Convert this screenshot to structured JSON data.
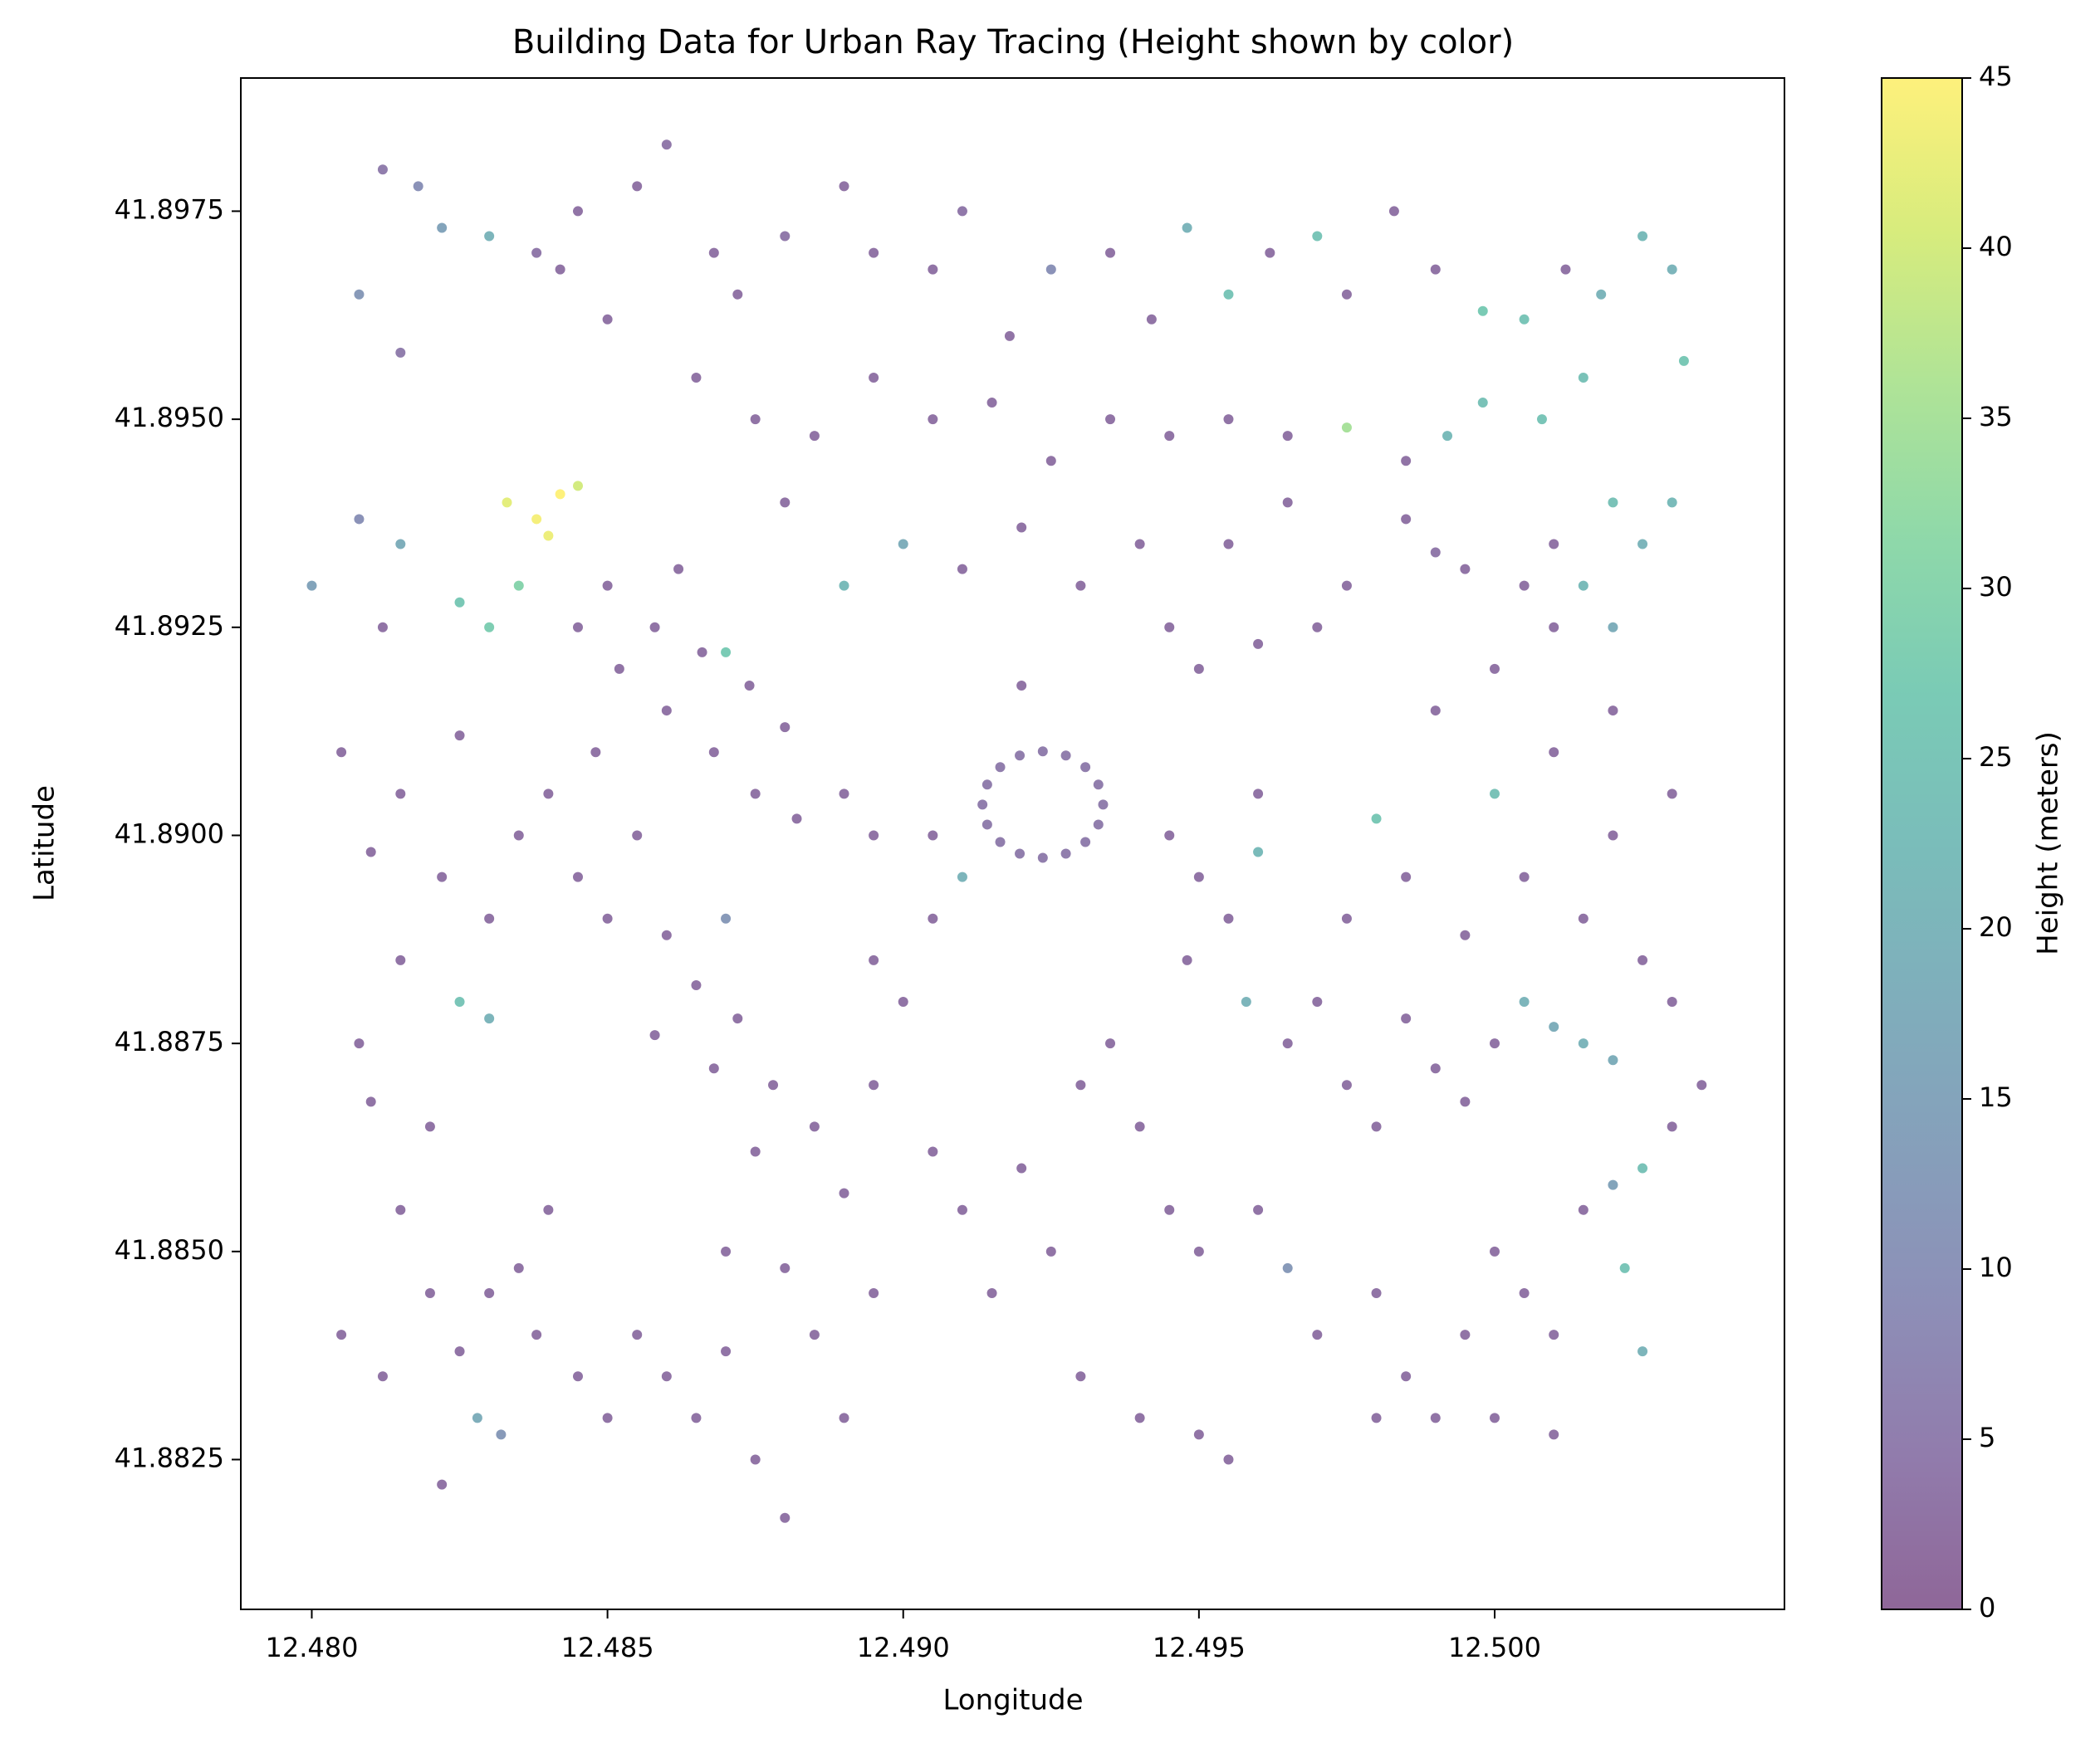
{
  "chart_data": {
    "type": "scatter",
    "title": "Building Data for Urban Ray Tracing (Height shown by color)",
    "x_label": "Longitude",
    "y_label": "Latitude",
    "colorbar_label": "Height (meters)",
    "colormap": "viridis",
    "alpha": 0.6,
    "xlim": [
      12.4788,
      12.5049
    ],
    "ylim": [
      41.8807,
      41.8991
    ],
    "clim": [
      0,
      45
    ],
    "xticks": [
      {
        "value": 12.48,
        "label": "12.480"
      },
      {
        "value": 12.485,
        "label": "12.485"
      },
      {
        "value": 12.49,
        "label": "12.490"
      },
      {
        "value": 12.495,
        "label": "12.495"
      },
      {
        "value": 12.5,
        "label": "12.500"
      }
    ],
    "yticks": [
      {
        "value": 41.8825,
        "label": "41.8825"
      },
      {
        "value": 41.885,
        "label": "41.8850"
      },
      {
        "value": 41.8875,
        "label": "41.8875"
      },
      {
        "value": 41.89,
        "label": "41.8900"
      },
      {
        "value": 41.8925,
        "label": "41.8925"
      },
      {
        "value": 41.895,
        "label": "41.8950"
      },
      {
        "value": 41.8975,
        "label": "41.8975"
      }
    ],
    "cticks": [
      0,
      5,
      10,
      15,
      20,
      25,
      30,
      35,
      40,
      45
    ],
    "x": [
      12.4812,
      12.4818,
      12.4822,
      12.4808,
      12.4815,
      12.483,
      12.4838,
      12.4842,
      12.4845,
      12.485,
      12.4855,
      12.486,
      12.4868,
      12.4872,
      12.488,
      12.489,
      12.4895,
      12.4905,
      12.491,
      12.4918,
      12.4925,
      12.4935,
      12.4942,
      12.4948,
      12.4955,
      12.4962,
      12.497,
      12.4975,
      12.4983,
      12.499,
      12.4998,
      12.5005,
      12.5012,
      12.5018,
      12.5025,
      12.503,
      12.5032,
      12.5015,
      12.5008,
      12.4998,
      12.4865,
      12.4875,
      12.4885,
      12.4895,
      12.4905,
      12.4915,
      12.4925,
      12.4935,
      12.4945,
      12.4955,
      12.4965,
      12.4975,
      12.4985,
      12.4992,
      12.488,
      12.489,
      12.49,
      12.491,
      12.492,
      12.493,
      12.494,
      12.4945,
      12.4955,
      12.4965,
      12.4975,
      12.4985,
      12.499,
      12.495,
      12.496,
      12.492,
      12.4833,
      12.4838,
      12.4842,
      12.484,
      12.4845,
      12.48,
      12.4808,
      12.4815,
      12.4825,
      12.483,
      12.4835,
      12.4812,
      12.4805,
      12.4815,
      12.4825,
      12.481,
      12.4822,
      12.483,
      12.4835,
      12.4815,
      12.4825,
      12.483,
      12.4808,
      12.481,
      12.482,
      12.4845,
      12.4852,
      12.486,
      12.4868,
      12.4875,
      12.4882,
      12.485,
      12.4858,
      12.4866,
      12.4874,
      12.488,
      12.489,
      12.4895,
      12.4862,
      12.487,
      12.4848,
      12.484,
      12.4855,
      12.485,
      12.486,
      12.4865,
      12.4872,
      12.4878,
      12.4885,
      12.4858,
      12.4868,
      12.4875,
      12.4845,
      12.487,
      12.4895,
      12.49,
      12.4905,
      12.4895,
      12.49338,
      12.4933,
      12.49308,
      12.49275,
      12.49236,
      12.49197,
      12.49164,
      12.49142,
      12.49134,
      12.49142,
      12.49164,
      12.49197,
      12.49236,
      12.49275,
      12.49308,
      12.4933,
      12.4905,
      12.491,
      12.493,
      12.4935,
      12.494,
      12.492,
      12.491,
      12.4905,
      12.4925,
      12.4945,
      12.495,
      12.4915,
      12.493,
      12.494,
      12.489,
      12.4895,
      12.4885,
      12.489,
      12.488,
      12.4875,
      12.487,
      12.488,
      12.4805,
      12.4812,
      12.482,
      12.4825,
      12.483,
      12.4828,
      12.4832,
      12.4838,
      12.4845,
      12.485,
      12.4855,
      12.486,
      12.4865,
      12.487,
      12.4822,
      12.4815,
      12.484,
      12.4835,
      12.4945,
      12.495,
      12.4955,
      12.496,
      12.4948,
      12.4958,
      12.4965,
      12.497,
      12.4975,
      12.498,
      12.4985,
      12.499,
      12.4995,
      12.5,
      12.5005,
      12.501,
      12.5015,
      12.502,
      12.4975,
      12.4985,
      12.4995,
      12.5005,
      12.5015,
      12.5025,
      12.503,
      12.502,
      12.498,
      12.5,
      12.499,
      12.5,
      12.501,
      12.502,
      12.503,
      12.501,
      12.5015,
      12.502,
      12.5025,
      12.503,
      12.502,
      12.501,
      12.5005,
      12.4995,
      12.497,
      12.496,
      12.496,
      12.4965,
      12.497,
      12.498,
      12.4985,
      12.499,
      12.4995,
      12.5,
      12.5005,
      12.501,
      12.5015,
      12.502,
      12.5025,
      12.5022,
      12.5025,
      12.5,
      12.498,
      12.495,
      12.4955,
      12.501,
      12.503,
      12.5035
    ],
    "y": [
      41.898,
      41.8978,
      41.8973,
      41.8965,
      41.8958,
      41.8972,
      41.897,
      41.8968,
      41.8975,
      41.8962,
      41.8978,
      41.8983,
      41.897,
      41.8965,
      41.8972,
      41.8978,
      41.897,
      41.8968,
      41.8975,
      41.896,
      41.8968,
      41.897,
      41.8962,
      41.8973,
      41.8965,
      41.897,
      41.8972,
      41.8965,
      41.8975,
      41.8968,
      41.8963,
      41.8962,
      41.8968,
      41.8965,
      41.8972,
      41.8968,
      41.8957,
      41.8955,
      41.895,
      41.8952,
      41.8955,
      41.895,
      41.8948,
      41.8955,
      41.895,
      41.8952,
      41.8945,
      41.895,
      41.8948,
      41.895,
      41.8948,
      41.8949,
      41.8945,
      41.8948,
      41.894,
      41.893,
      41.8935,
      41.8932,
      41.8937,
      41.893,
      41.8935,
      41.8925,
      41.8935,
      41.894,
      41.893,
      41.8938,
      41.8934,
      41.892,
      41.8923,
      41.8918,
      41.894,
      41.8938,
      41.8941,
      41.8936,
      41.8942,
      41.893,
      41.8938,
      41.8935,
      41.8928,
      41.8925,
      41.893,
      41.8925,
      41.891,
      41.8905,
      41.8912,
      41.8898,
      41.8895,
      41.889,
      41.89,
      41.8885,
      41.888,
      41.8878,
      41.8875,
      41.8868,
      41.8865,
      41.8925,
      41.892,
      41.8915,
      41.891,
      41.8905,
      41.8902,
      41.893,
      41.8925,
      41.8922,
      41.8918,
      41.8913,
      41.8905,
      41.89,
      41.8932,
      41.8922,
      41.891,
      41.8905,
      41.89,
      41.889,
      41.8888,
      41.8882,
      41.8878,
      41.887,
      41.8865,
      41.8876,
      41.8872,
      41.8862,
      41.8895,
      41.889,
      41.8885,
      41.888,
      41.889,
      41.887,
      41.89037,
      41.89061,
      41.89082,
      41.89096,
      41.89101,
      41.89096,
      41.89082,
      41.89061,
      41.89037,
      41.89013,
      41.88992,
      41.88978,
      41.88973,
      41.88978,
      41.88992,
      41.89013,
      41.89,
      41.8895,
      41.887,
      41.8875,
      41.8865,
      41.886,
      41.8855,
      41.8862,
      41.885,
      41.8855,
      41.885,
      41.8845,
      41.8835,
      41.883,
      41.8857,
      41.8845,
      41.884,
      41.883,
      41.8818,
      41.8825,
      41.885,
      41.8848,
      41.884,
      41.8835,
      41.8845,
      41.8838,
      41.8845,
      41.883,
      41.8828,
      41.884,
      41.8835,
      41.883,
      41.884,
      41.8835,
      41.883,
      41.8838,
      41.8822,
      41.8855,
      41.8855,
      41.8848,
      41.89,
      41.8895,
      41.889,
      41.8898,
      41.8885,
      41.888,
      41.8875,
      41.888,
      41.887,
      41.8865,
      41.8878,
      41.8872,
      41.8868,
      41.8875,
      41.888,
      41.8877,
      41.8875,
      41.8873,
      41.889,
      41.8895,
      41.8888,
      41.8895,
      41.889,
      41.8885,
      41.888,
      41.89,
      41.8902,
      41.8905,
      41.8915,
      41.892,
      41.891,
      41.8915,
      41.8905,
      41.8925,
      41.893,
      41.8925,
      41.8935,
      41.894,
      41.894,
      41.8935,
      41.893,
      41.8932,
      41.8925,
      41.8905,
      41.8855,
      41.8848,
      41.884,
      41.8845,
      41.8835,
      41.883,
      41.884,
      41.885,
      41.8845,
      41.884,
      41.8855,
      41.8858,
      41.886,
      41.8848,
      41.8838,
      41.883,
      41.883,
      41.8828,
      41.8825,
      41.8828,
      41.8865,
      41.887
    ],
    "c": [
      5,
      10,
      15,
      12,
      5,
      20,
      4,
      3,
      3,
      3,
      3,
      4,
      3,
      3,
      4,
      3,
      3,
      3,
      4,
      3,
      10,
      3,
      3,
      20,
      25,
      3,
      25,
      3,
      3,
      3,
      27,
      25,
      3,
      20,
      22,
      20,
      26,
      24,
      25,
      24,
      3,
      3,
      3,
      3,
      3,
      3,
      3,
      3,
      3,
      3,
      3,
      35,
      3,
      22,
      3,
      22,
      18,
      3,
      3,
      3,
      3,
      3,
      3,
      3,
      3,
      3,
      4,
      3,
      3,
      3,
      42,
      44,
      45,
      43,
      40,
      15,
      10,
      18,
      26,
      28,
      30,
      3,
      3,
      3,
      3,
      3,
      3,
      3,
      3,
      3,
      25,
      20,
      3,
      3,
      3,
      3,
      3,
      3,
      3,
      3,
      3,
      3,
      3,
      3,
      3,
      3,
      3,
      3,
      3,
      27,
      3,
      3,
      3,
      3,
      3,
      3,
      3,
      3,
      3,
      3,
      3,
      3,
      3,
      12,
      3,
      3,
      3,
      3,
      5,
      5,
      5,
      5,
      5,
      5,
      5,
      5,
      5,
      5,
      5,
      5,
      5,
      5,
      5,
      5,
      3,
      20,
      3,
      3,
      3,
      3,
      3,
      3,
      3,
      3,
      3,
      3,
      3,
      3,
      3,
      3,
      3,
      3,
      3,
      3,
      3,
      3,
      3,
      3,
      3,
      3,
      3,
      18,
      12,
      3,
      3,
      3,
      3,
      3,
      3,
      3,
      3,
      3,
      3,
      3,
      3,
      3,
      3,
      22,
      3,
      20,
      3,
      3,
      3,
      3,
      3,
      3,
      3,
      3,
      20,
      18,
      20,
      18,
      3,
      3,
      3,
      3,
      3,
      3,
      3,
      3,
      26,
      24,
      3,
      3,
      3,
      3,
      3,
      3,
      22,
      18,
      20,
      22,
      24,
      3,
      3,
      3,
      3,
      3,
      3,
      12,
      3,
      3,
      3,
      3,
      3,
      3,
      3,
      3,
      3,
      15,
      24,
      25,
      20,
      3,
      3,
      3,
      3,
      3,
      3,
      3
    ]
  }
}
